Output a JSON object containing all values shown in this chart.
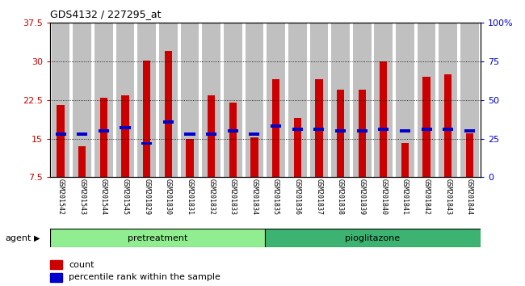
{
  "title": "GDS4132 / 227295_at",
  "categories": [
    "GSM201542",
    "GSM201543",
    "GSM201544",
    "GSM201545",
    "GSM201829",
    "GSM201830",
    "GSM201831",
    "GSM201832",
    "GSM201833",
    "GSM201834",
    "GSM201835",
    "GSM201836",
    "GSM201837",
    "GSM201838",
    "GSM201839",
    "GSM201840",
    "GSM201841",
    "GSM201842",
    "GSM201843",
    "GSM201844"
  ],
  "count_values": [
    21.5,
    13.5,
    23.0,
    23.5,
    30.2,
    32.0,
    15.0,
    23.5,
    22.0,
    15.2,
    26.5,
    19.0,
    26.5,
    24.5,
    24.5,
    30.0,
    14.2,
    27.0,
    27.5,
    16.0
  ],
  "percentile_values": [
    28,
    28,
    30,
    32,
    22,
    36,
    28,
    28,
    30,
    28,
    33,
    31,
    31,
    30,
    30,
    31,
    30,
    31,
    31,
    30
  ],
  "bar_color": "#cc0000",
  "percentile_color": "#0000cc",
  "bar_bg_color": "#c0c0c0",
  "ylim_left": [
    7.5,
    37.5
  ],
  "ylim_right": [
    0,
    100
  ],
  "yticks_left": [
    7.5,
    15.0,
    22.5,
    30.0,
    37.5
  ],
  "yticks_right": [
    0,
    25,
    50,
    75,
    100
  ],
  "ytick_labels_right": [
    "0",
    "25",
    "50",
    "75",
    "100%"
  ],
  "ytick_labels_left": [
    "7.5",
    "15",
    "22.5",
    "30",
    "37.5"
  ],
  "legend_items": [
    {
      "label": "count",
      "color": "#cc0000"
    },
    {
      "label": "percentile rank within the sample",
      "color": "#0000cc"
    }
  ],
  "agent_label": "agent",
  "left_tick_color": "#cc0000",
  "right_tick_color": "#0000cc",
  "pretreat_color": "#90ee90",
  "pioglit_color": "#3cb371",
  "n_pretreat": 10,
  "n_pioglit": 10
}
